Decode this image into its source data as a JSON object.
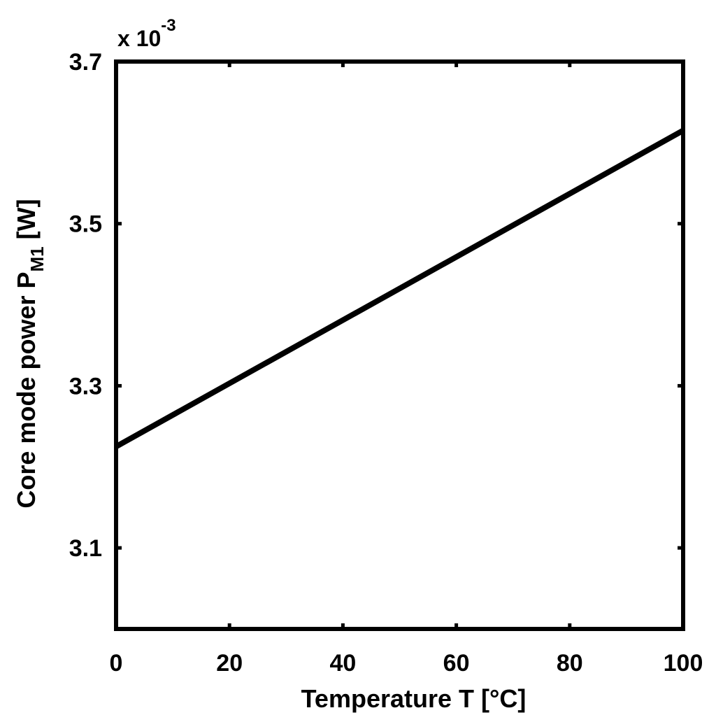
{
  "chart_data": {
    "type": "line",
    "xlabel": "Temperature  T [°C]",
    "ylabel": {
      "prefix": "Core mode power P",
      "subscript": "M1",
      "suffix": " [W]"
    },
    "y_multiplier": {
      "base": "x 10",
      "exponent": "-3"
    },
    "xlim": [
      0,
      100
    ],
    "ylim": [
      3.0,
      3.7
    ],
    "xticks": [
      0,
      20,
      40,
      60,
      80,
      100
    ],
    "xtick_labels": [
      "0",
      "20",
      "40",
      "60",
      "80",
      "100"
    ],
    "yticks": [
      3.1,
      3.3,
      3.5,
      3.7
    ],
    "ytick_labels": [
      "3.1",
      "3.3",
      "3.5",
      "3.7"
    ],
    "grid": false,
    "series": [
      {
        "x": [
          0,
          100
        ],
        "y": [
          3.225,
          3.615
        ],
        "color": "#000000"
      }
    ]
  }
}
